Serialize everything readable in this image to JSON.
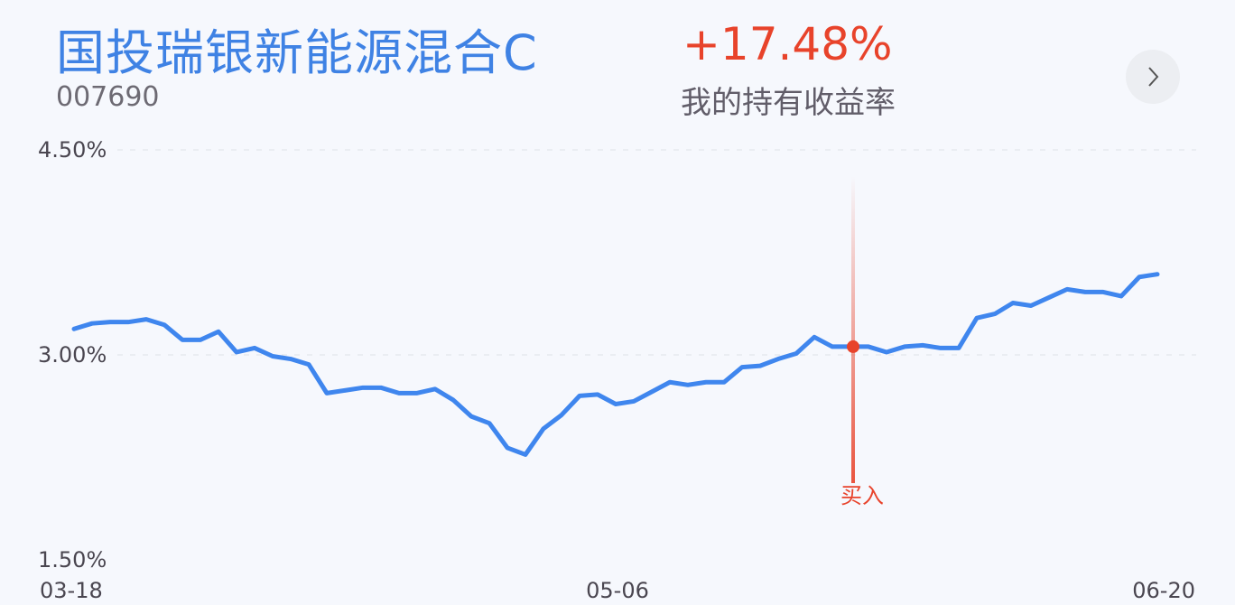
{
  "fund": {
    "name": "国投瑞银新能源混合C",
    "code": "007690"
  },
  "holding": {
    "return": "+17.48%",
    "label": "我的持有收益率"
  },
  "nav": {
    "icon": "chevron-right-icon"
  },
  "colors": {
    "line": "#3f86ee",
    "accent_red": "#e8432b",
    "title_blue": "#3f82e4"
  },
  "chart_data": {
    "type": "line",
    "yticks": [
      "4.50%",
      "3.00%",
      "1.50%"
    ],
    "ylim": [
      1.5,
      4.5
    ],
    "xticks": [
      "03-18",
      "05-06",
      "06-20"
    ],
    "grid": true,
    "series": [
      {
        "values": [
          3.19,
          3.23,
          3.24,
          3.24,
          3.26,
          3.22,
          3.11,
          3.11,
          3.17,
          3.02,
          3.05,
          2.99,
          2.97,
          2.93,
          2.72,
          2.74,
          2.76,
          2.76,
          2.72,
          2.72,
          2.75,
          2.67,
          2.55,
          2.5,
          2.32,
          2.27,
          2.46,
          2.56,
          2.7,
          2.71,
          2.64,
          2.66,
          2.73,
          2.8,
          2.78,
          2.8,
          2.8,
          2.91,
          2.92,
          2.97,
          3.01,
          3.13,
          3.06,
          3.06,
          3.06,
          3.02,
          3.06,
          3.07,
          3.05,
          3.05,
          3.27,
          3.3,
          3.38,
          3.36,
          3.42,
          3.48,
          3.46,
          3.46,
          3.43,
          3.57,
          3.59
        ]
      }
    ],
    "annotation": {
      "label": "买入",
      "index": 43
    }
  }
}
